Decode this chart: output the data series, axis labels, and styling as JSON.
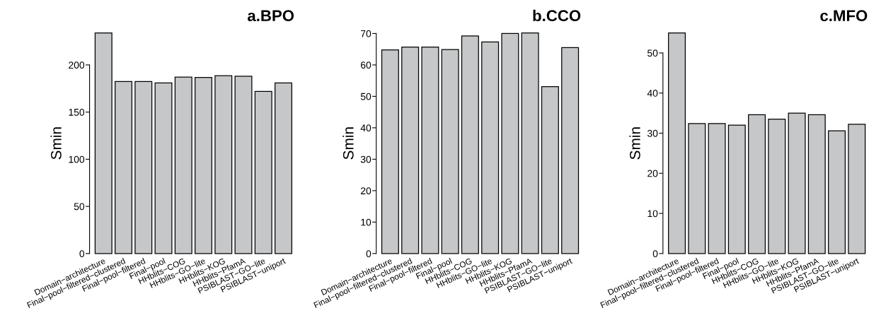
{
  "chart_data": [
    {
      "type": "bar",
      "title": "a.BPO",
      "ylabel": "Smin",
      "categories": [
        "Domain−architecture",
        "Final−pool−filtered−clustered",
        "Final−pool−filtered",
        "Final−pool",
        "HHblits−COG",
        "HHblits−GO−lite",
        "HHblits−KOG",
        "HHblits−PfamA",
        "PSIBLAST−GO−lite",
        "PSIBLAST−uniport"
      ],
      "values": [
        234,
        182.5,
        182.5,
        181,
        187,
        186.7,
        188.5,
        188,
        172,
        181
      ],
      "color": "#c6c7c8",
      "ylim": [
        0,
        234
      ],
      "yticks": [
        0,
        50,
        100,
        150,
        200
      ],
      "grid": false
    },
    {
      "type": "bar",
      "title": "b.CCO",
      "ylabel": "Smin",
      "categories": [
        "Domain−architecture",
        "Final−pool−filtered−clustered",
        "Final−pool−filtered",
        "Final−pool",
        "HHblits−COG",
        "HHblits−GO−lite",
        "HHblits−KOG",
        "HHblits−PfamA",
        "PSIBLAST−GO−lite",
        "PSIBLAST−uniport"
      ],
      "values": [
        64.8,
        65.7,
        65.7,
        64.9,
        69.2,
        67.3,
        70.0,
        70.2,
        53.1,
        65.5
      ],
      "color": "#c6c7c8",
      "ylim": [
        0,
        70.2
      ],
      "yticks": [
        0,
        10,
        20,
        30,
        40,
        50,
        60,
        70
      ],
      "grid": false
    },
    {
      "type": "bar",
      "title": "c.MFO",
      "ylabel": "Smin",
      "categories": [
        "Domain−architecture",
        "Final−pool−filtered−clustered",
        "Final−pool−filtered",
        "Final−pool",
        "HHblits−COG",
        "HHblits−GO−lite",
        "HHblits−KOG",
        "HHblits−PfamA",
        "PSIBLAST−GO−lite",
        "PSIBLAST−uniport"
      ],
      "values": [
        55.0,
        32.4,
        32.4,
        32.0,
        34.6,
        33.5,
        35.0,
        34.6,
        30.6,
        32.2
      ],
      "color": "#c6c7c8",
      "ylim": [
        0,
        55
      ],
      "yticks": [
        0,
        10,
        20,
        30,
        40,
        50
      ],
      "grid": false
    }
  ]
}
